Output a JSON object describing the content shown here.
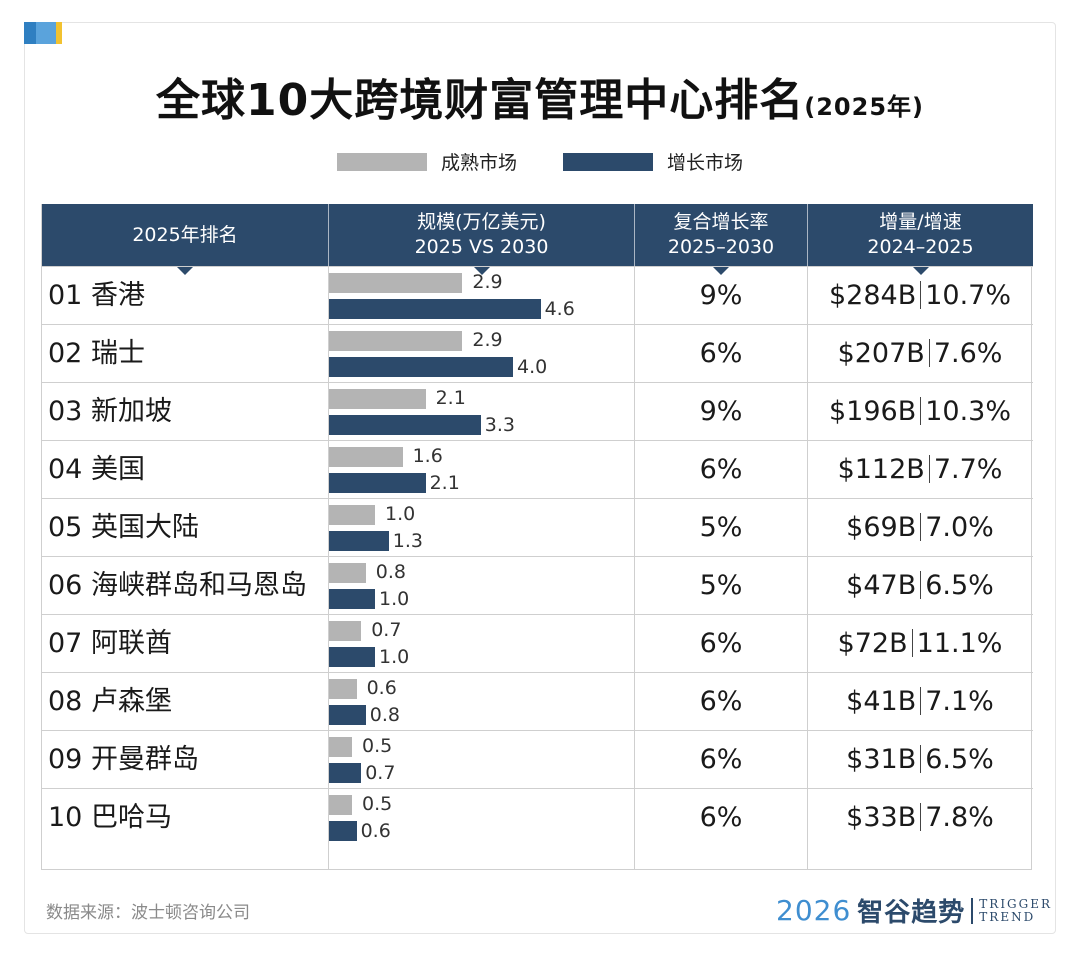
{
  "title": "全球10大跨境财富管理中心排名",
  "title_sub": "(2025年)",
  "legend": [
    {
      "label": "成熟市场",
      "color": "#b4b4b4"
    },
    {
      "label": "增长市场",
      "color": "#2c4a6b"
    }
  ],
  "headers": {
    "rank": "2025年排名",
    "scale_line1": "规模(万亿美元)",
    "scale_line2": "2025 VS 2030",
    "cagr_line1": "复合增长率",
    "cagr_line2": "2025–2030",
    "incr_line1": "增量/增速",
    "incr_line2": "2024–2025"
  },
  "chart_data": {
    "type": "table",
    "rows": [
      {
        "rank": "01 香港",
        "v2025": 2.9,
        "v2030": 4.6,
        "v2025_label": "2.9",
        "v2030_label": "4.6",
        "cagr": "9%",
        "increment": "$284B",
        "growth": "10.7%"
      },
      {
        "rank": "02 瑞士",
        "v2025": 2.9,
        "v2030": 4.0,
        "v2025_label": "2.9",
        "v2030_label": "4.0",
        "cagr": "6%",
        "increment": "$207B",
        "growth": "7.6%"
      },
      {
        "rank": "03 新加坡",
        "v2025": 2.1,
        "v2030": 3.3,
        "v2025_label": "2.1",
        "v2030_label": "3.3",
        "cagr": "9%",
        "increment": "$196B",
        "growth": "10.3%"
      },
      {
        "rank": "04 美国",
        "v2025": 1.6,
        "v2030": 2.1,
        "v2025_label": "1.6",
        "v2030_label": "2.1",
        "cagr": "6%",
        "increment": "$112B",
        "growth": "7.7%"
      },
      {
        "rank": "05 英国大陆",
        "v2025": 1.0,
        "v2030": 1.3,
        "v2025_label": "1.0",
        "v2030_label": "1.3",
        "cagr": "5%",
        "increment": "$69B",
        "growth": "7.0%"
      },
      {
        "rank": "06 海峡群岛和马恩岛",
        "v2025": 0.8,
        "v2030": 1.0,
        "v2025_label": "0.8",
        "v2030_label": "1.0",
        "cagr": "5%",
        "increment": "$47B",
        "growth": "6.5%"
      },
      {
        "rank": "07 阿联酋",
        "v2025": 0.7,
        "v2030": 1.0,
        "v2025_label": "0.7",
        "v2030_label": "1.0",
        "cagr": "6%",
        "increment": "$72B",
        "growth": "11.1%"
      },
      {
        "rank": "08 卢森堡",
        "v2025": 0.6,
        "v2030": 0.8,
        "v2025_label": "0.6",
        "v2030_label": "0.8",
        "cagr": "6%",
        "increment": "$41B",
        "growth": "7.1%"
      },
      {
        "rank": "09 开曼群岛",
        "v2025": 0.5,
        "v2030": 0.7,
        "v2025_label": "0.5",
        "v2030_label": "0.7",
        "cagr": "6%",
        "increment": "$31B",
        "growth": "6.5%"
      },
      {
        "rank": "10 巴哈马",
        "v2025": 0.5,
        "v2030": 0.6,
        "v2025_label": "0.5",
        "v2030_label": "0.6",
        "cagr": "6%",
        "increment": "$33B",
        "growth": "7.8%"
      }
    ]
  },
  "source": "数据来源：波士顿咨询公司",
  "logo": {
    "year": "2026",
    "name": "智谷趋势",
    "en1": "TRIGGER",
    "en2": "TREND"
  }
}
